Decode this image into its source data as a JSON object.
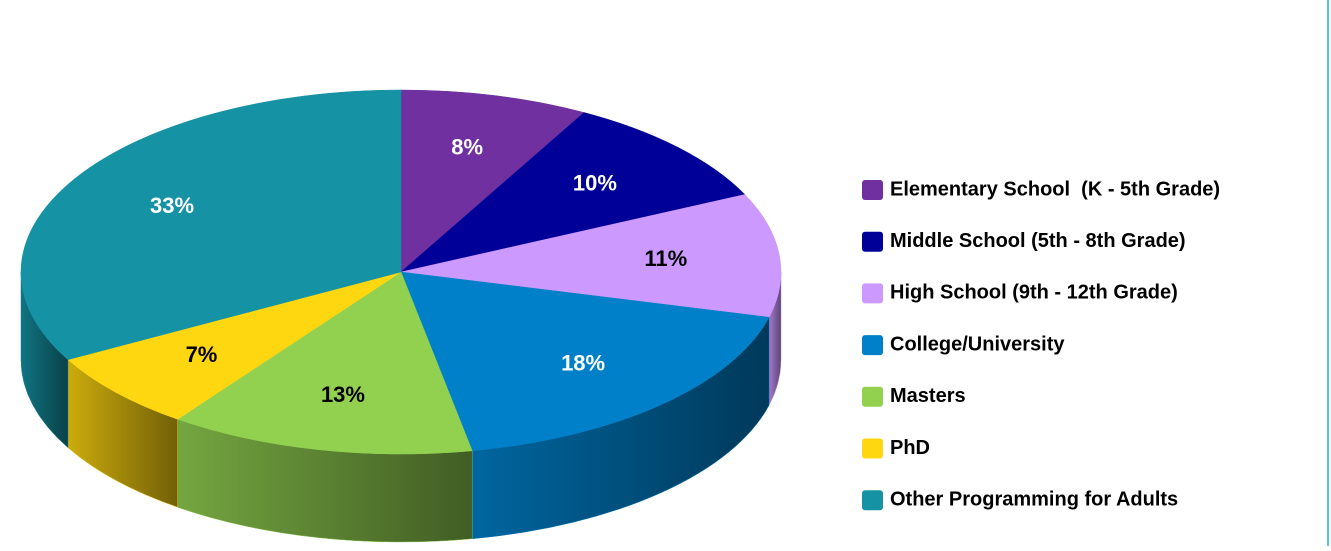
{
  "chart_data": {
    "type": "pie",
    "categories": [
      "Elementary School  (K - 5th Grade)",
      "Middle School (5th - 8th Grade)",
      "High School (9th - 12th Grade)",
      "College/University",
      "Masters",
      "PhD",
      "Other Programming for Adults"
    ],
    "values": [
      8,
      10,
      11,
      18,
      13,
      7,
      33
    ],
    "value_labels": [
      "8%",
      "10%",
      "11%",
      "18%",
      "13%",
      "7%",
      "33%"
    ],
    "colors": [
      "#7030a0",
      "#000099",
      "#cc99ff",
      "#0080c8",
      "#92d050",
      "#ffd711",
      "#1592a3"
    ],
    "legend": "right"
  }
}
